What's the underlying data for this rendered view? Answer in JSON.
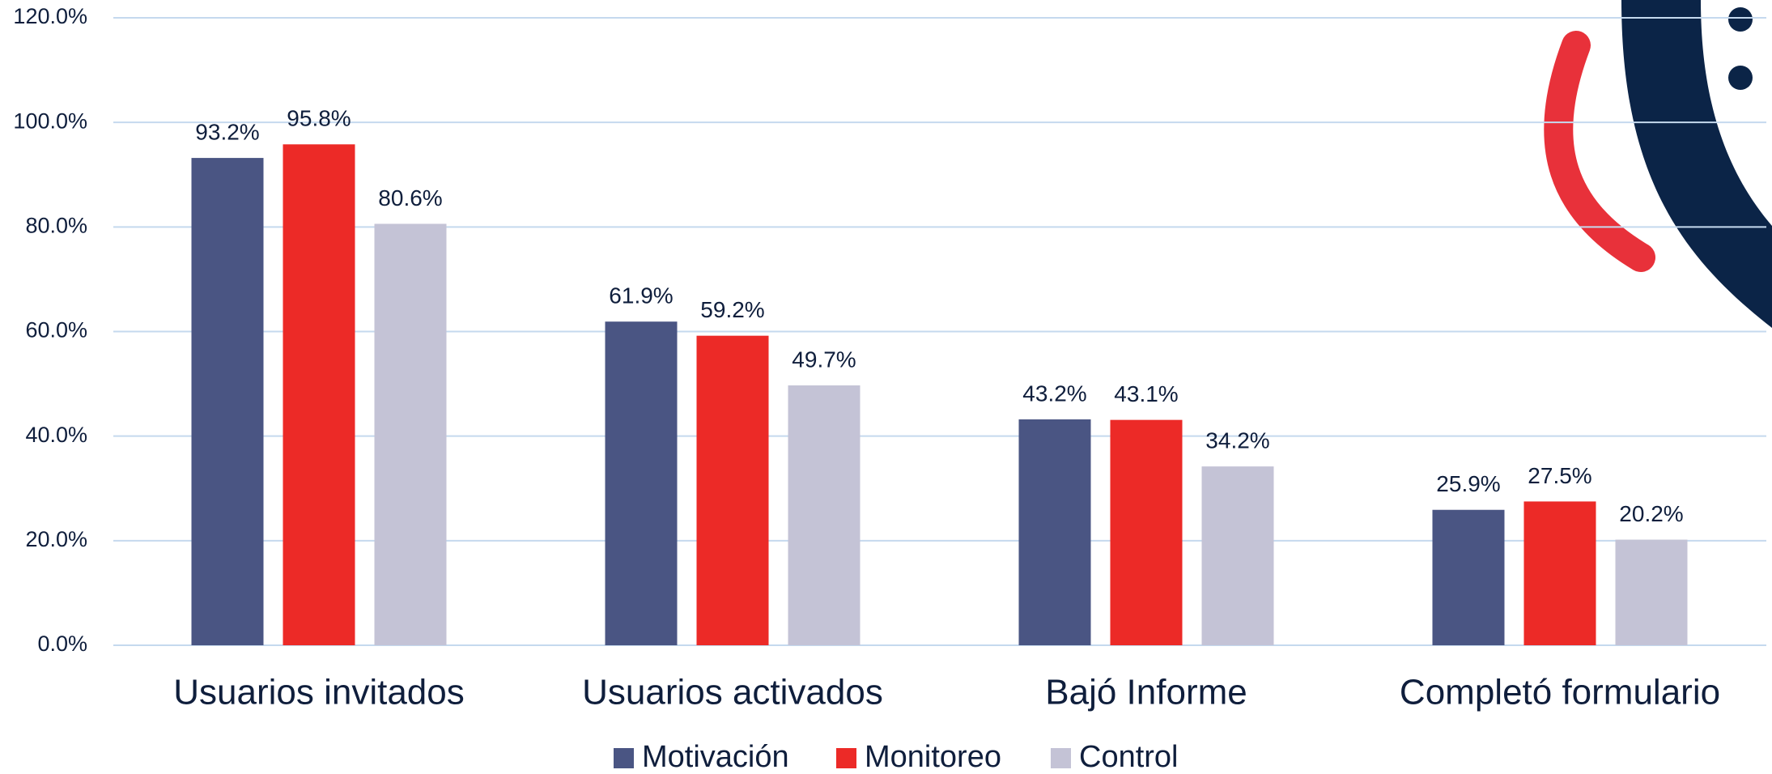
{
  "chart_data": {
    "type": "bar",
    "categories": [
      "Usuarios invitados",
      "Usuarios activados",
      "Bajó Informe",
      "Completó formulario"
    ],
    "series": [
      {
        "name": "Motivación",
        "color": "#4a5583",
        "values": [
          93.2,
          61.9,
          43.2,
          25.9
        ],
        "value_labels": [
          "93.2%",
          "61.9%",
          "43.2%",
          "25.9%"
        ]
      },
      {
        "name": "Monitoreo",
        "color": "#ec2a27",
        "values": [
          95.8,
          59.2,
          43.1,
          27.5
        ],
        "value_labels": [
          "95.8%",
          "59.2%",
          "43.1%",
          "27.5%"
        ]
      },
      {
        "name": "Control",
        "color": "#c4c3d6",
        "values": [
          80.6,
          49.7,
          34.2,
          20.2
        ],
        "value_labels": [
          "80.6%",
          "49.7%",
          "34.2%",
          "20.2%"
        ]
      }
    ],
    "ylim": [
      0,
      120
    ],
    "yticks": [
      {
        "value": 0,
        "label": "0.0%"
      },
      {
        "value": 20,
        "label": "20.0%"
      },
      {
        "value": 40,
        "label": "40.0%"
      },
      {
        "value": 60,
        "label": "60.0%"
      },
      {
        "value": 80,
        "label": "80.0%"
      },
      {
        "value": 100,
        "label": "100.0%"
      },
      {
        "value": 120,
        "label": "120.0%"
      }
    ],
    "grid": true,
    "legend": "bottom"
  }
}
